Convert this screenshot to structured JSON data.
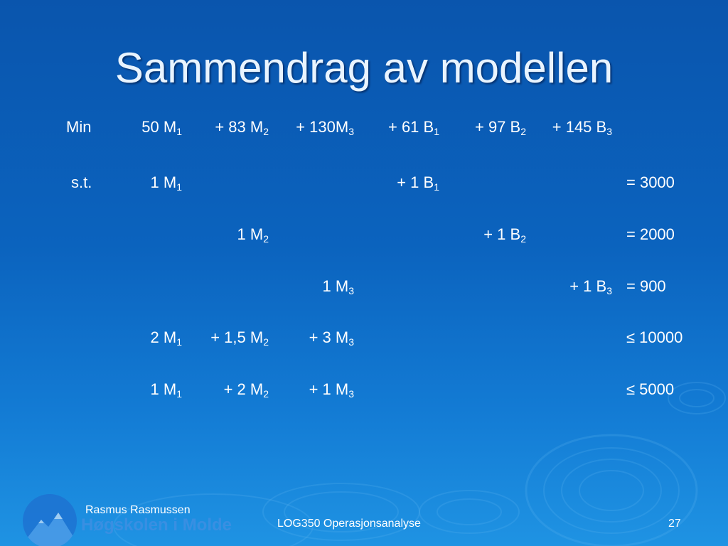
{
  "slide": {
    "title": "Sammendrag av modellen",
    "objective": {
      "label": "Min",
      "terms": [
        {
          "coef": "50 M",
          "sub": "1"
        },
        {
          "coef": "+ 83 M",
          "sub": "2"
        },
        {
          "coef": "+ 130M",
          "sub": "3"
        },
        {
          "coef": "+ 61 B",
          "sub": "1"
        },
        {
          "coef": "+ 97 B",
          "sub": "2"
        },
        {
          "coef": "+ 145 B",
          "sub": "3"
        }
      ]
    },
    "constraints": [
      {
        "label": "s.t.",
        "terms": [
          {
            "coef": "1 M",
            "sub": "1"
          },
          {
            "coef": "+ 1 B",
            "sub": "1"
          }
        ],
        "rhs": "= 3000"
      },
      {
        "terms": [
          {
            "coef": "1 M",
            "sub": "2"
          },
          {
            "coef": "+ 1 B",
            "sub": "2"
          }
        ],
        "rhs": "= 2000"
      },
      {
        "terms": [
          {
            "coef": "1 M",
            "sub": "3"
          },
          {
            "coef": "+ 1 B",
            "sub": "3"
          }
        ],
        "rhs": "= 900"
      },
      {
        "terms": [
          {
            "coef": "2 M",
            "sub": "1"
          },
          {
            "coef": "+ 1,5 M",
            "sub": "2"
          },
          {
            "coef": "+ 3 M",
            "sub": "3"
          }
        ],
        "rhs": "≤ 10000"
      },
      {
        "terms": [
          {
            "coef": "1 M",
            "sub": "1"
          },
          {
            "coef": "+ 2 M",
            "sub": "2"
          },
          {
            "coef": "+ 1 M",
            "sub": "3"
          }
        ],
        "rhs": "≤ 5000"
      }
    ]
  },
  "footer": {
    "author": "Rasmus Rasmussen",
    "institution": "Høgskolen i Molde",
    "course": "LOG350 Operasjonsanalyse",
    "page_number": "27"
  },
  "colors": {
    "background_top": "#0a55ad",
    "background_bottom": "#1f93e3",
    "title": "#e9f4ff",
    "text": "#ffffff"
  }
}
